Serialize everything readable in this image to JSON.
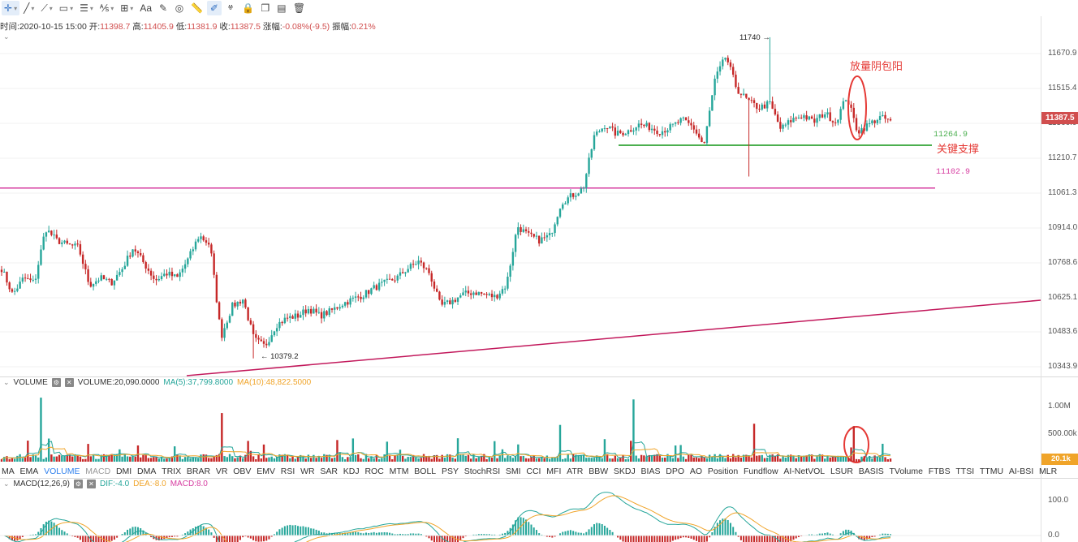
{
  "toolbar": {
    "tools": [
      {
        "name": "crosshair-tool",
        "glyph": "✛",
        "active": true
      },
      {
        "name": "line-tool",
        "glyph": "╱"
      },
      {
        "name": "ray-tool",
        "glyph": "⟋"
      },
      {
        "name": "rectangle-tool",
        "glyph": "▭"
      },
      {
        "name": "parallel-lines-tool",
        "glyph": "☰"
      },
      {
        "name": "fibonacci-tool",
        "glyph": "⅍"
      },
      {
        "name": "measure-tool",
        "glyph": "⊞"
      },
      {
        "name": "text-tool",
        "glyph": "Aa"
      },
      {
        "name": "brush-tool",
        "glyph": "✎"
      },
      {
        "name": "magnet-tool",
        "glyph": "◎"
      },
      {
        "name": "ruler-tool",
        "glyph": "📏"
      },
      {
        "name": "draw-mode-tool",
        "glyph": "✐",
        "active": true
      },
      {
        "name": "pattern-tool",
        "glyph": "ⱍ"
      },
      {
        "name": "lock-tool",
        "glyph": "🔒"
      },
      {
        "name": "copy-tool",
        "glyph": "❐"
      },
      {
        "name": "screenshot-tool",
        "glyph": "▤"
      },
      {
        "name": "delete-tool",
        "glyph": "🗑"
      }
    ]
  },
  "info": {
    "time_label": "时间:",
    "time": "2020-10-15 15:00",
    "open_label": "开:",
    "open": "11398.7",
    "high_label": "高:",
    "high": "11405.9",
    "low_label": "低:",
    "low": "11381.9",
    "close_label": "收:",
    "close": "11387.5",
    "change_label": "涨幅:",
    "change": "-0.08%(-9.5)",
    "amp_label": "振幅:",
    "amp": "0.21%"
  },
  "price_axis": [
    "11670.9",
    "11515.4",
    "11366.0",
    "11210.7",
    "11061.3",
    "10914.0",
    "10768.6",
    "10625.1",
    "10483.6",
    "10343.9"
  ],
  "last_price_tag": "11387.5",
  "annotations": {
    "high_mark": "11740",
    "low_mark": "10379.2",
    "pattern_note": "放量阴包阳",
    "support_note": "关键支撑",
    "support_level": "11264.9",
    "resistance_level": "11102.9"
  },
  "volume_pane": {
    "name": "VOLUME",
    "value_label": "VOLUME:20,090.0000",
    "ma5_label": "MA(5):37,799.8000",
    "ma10_label": "MA(10):48,822.5000",
    "axis": [
      "1.00M",
      "500.00k"
    ],
    "tag": "20.1k"
  },
  "indicator_tabs": [
    "MA",
    "EMA",
    "VOLUME",
    "MACD",
    "DMI",
    "DMA",
    "TRIX",
    "BRAR",
    "VR",
    "OBV",
    "EMV",
    "RSI",
    "WR",
    "SAR",
    "KDJ",
    "ROC",
    "MTM",
    "BOLL",
    "PSY",
    "StochRSI",
    "SMI",
    "CCI",
    "MFI",
    "ATR",
    "BBW",
    "SKDJ",
    "BIAS",
    "DPO",
    "AO",
    "Position",
    "Fundflow",
    "AI-NetVOL",
    "LSUR",
    "BASIS",
    "TVolume",
    "FTBS",
    "TTSI",
    "TTMU",
    "AI-BSI",
    "MLR"
  ],
  "active_tab": "VOLUME",
  "macd_pane": {
    "name": "MACD(12,26,9)",
    "dif_label": "DIF:-4.0",
    "dea_label": "DEA:-8.0",
    "macd_label": "MACD:8.0",
    "axis": [
      "100.0",
      "0.0"
    ]
  },
  "colors": {
    "up": "#26a69a",
    "down": "#c62828",
    "support_line": "#4caf50",
    "resistance_line": "#d63ca0",
    "trend_line": "#c2185b",
    "ma5": "#26a69a",
    "ma10": "#f0a429",
    "dif": "#26a69a",
    "dea": "#f0a429",
    "annotation": "#e53935"
  },
  "chart_data": {
    "type": "candlestick",
    "timeframe_note": "hourly candles",
    "last_bar": {
      "time": "2020-10-15 15:00",
      "open": 11398.7,
      "high": 11405.9,
      "low": 11381.9,
      "close": 11387.5
    },
    "price_ylim": [
      10343.9,
      11670.9
    ],
    "anchor_closes": [
      10760,
      10650,
      10720,
      10700,
      10930,
      10880,
      10860,
      10850,
      10690,
      10720,
      10700,
      10760,
      10850,
      10780,
      10710,
      10740,
      10720,
      10800,
      10900,
      10860,
      10470,
      10600,
      10630,
      10460,
      10430,
      10520,
      10550,
      10560,
      10590,
      10560,
      10580,
      10610,
      10630,
      10650,
      10680,
      10700,
      10720,
      10760,
      10790,
      10740,
      10600,
      10620,
      10650,
      10660,
      10650,
      10640,
      10690,
      10940,
      10900,
      10880,
      10900,
      11040,
      11070,
      11100,
      11320,
      11370,
      11330,
      11340,
      11370,
      11360,
      11340,
      11360,
      11390,
      11360,
      11280,
      11560,
      11660,
      11520,
      11470,
      11440,
      11460,
      11350,
      11390,
      11410,
      11380,
      11420,
      11380,
      11490,
      11340,
      11370,
      11400,
      11387.5
    ],
    "volume_ylim": [
      0,
      1300000
    ],
    "macd_ylim": [
      -20,
      130
    ],
    "levels": [
      {
        "label": "11264.9",
        "value": 11264.9,
        "kind": "support"
      },
      {
        "label": "11102.9",
        "value": 11102.9,
        "kind": "resistance"
      }
    ],
    "extremes": [
      {
        "label": "11740",
        "value": 11740,
        "kind": "high"
      },
      {
        "label": "10379.2",
        "value": 10379.2,
        "kind": "low"
      }
    ]
  }
}
